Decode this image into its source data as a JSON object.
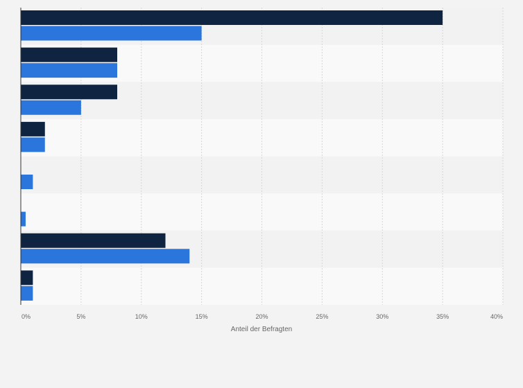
{
  "chart_data": {
    "type": "bar",
    "orientation": "horizontal",
    "categories": [
      "",
      "",
      "",
      "",
      "",
      "",
      "",
      ""
    ],
    "series": [
      {
        "values": [
          35,
          8,
          8,
          2,
          0,
          0,
          12,
          1
        ],
        "color": "#0f2440"
      },
      {
        "values": [
          15,
          8,
          5,
          2,
          1,
          0.4,
          14,
          1
        ],
        "color": "#2a76dd"
      }
    ],
    "x_ticks": [
      0,
      5,
      10,
      15,
      20,
      25,
      30,
      35,
      40
    ],
    "x_tick_labels": [
      "0%",
      "5%",
      "10%",
      "15%",
      "20%",
      "25%",
      "30%",
      "35%",
      "40%"
    ],
    "xlim": [
      0,
      40
    ],
    "xlabel": "Anteil der Befragten",
    "ylabel": "",
    "title": "",
    "grid": true,
    "legend": "none",
    "colors": {
      "background": "#f3f3f3",
      "band_light": "#f9f9f9",
      "band_dark": "#f2f2f2",
      "grid": "#d6d6d6",
      "axis": "#333333"
    }
  }
}
